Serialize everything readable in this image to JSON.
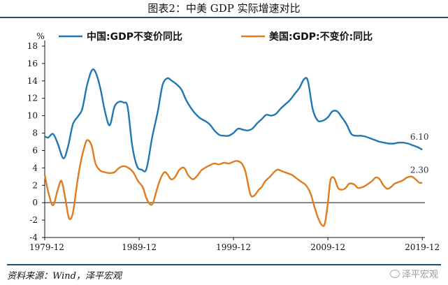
{
  "header": {
    "title": "图表2：中美 GDP 实际增速对比"
  },
  "source": {
    "text": "资料来源：Wind，泽平宏观"
  },
  "watermark": {
    "text": "泽平宏观"
  },
  "chart_data": {
    "type": "line",
    "title": "",
    "ylabel": "%",
    "xlabel": "",
    "ylim": [
      -4,
      18
    ],
    "xlim": [
      1979.92,
      2020.2
    ],
    "y_ticks": [
      -4,
      -2,
      0,
      2,
      4,
      6,
      8,
      10,
      12,
      14,
      16,
      18
    ],
    "x_ticks": [
      "1979-12",
      "1989-12",
      "1999-12",
      "2009-12",
      "2019-12"
    ],
    "x_tick_values": [
      1979.92,
      1989.92,
      1999.92,
      2009.92,
      2019.92
    ],
    "legend": "top",
    "grid": false,
    "series": [
      {
        "name": "中国:GDP不变价同比",
        "color": "#1f77b4",
        "end_label": "6.10",
        "points": [
          [
            1979.92,
            7.6
          ],
          [
            1980.3,
            7.5
          ],
          [
            1980.8,
            7.9
          ],
          [
            1981.3,
            6.8
          ],
          [
            1981.9,
            5.1
          ],
          [
            1982.4,
            6.5
          ],
          [
            1982.9,
            9.0
          ],
          [
            1983.5,
            10.0
          ],
          [
            1983.9,
            10.8
          ],
          [
            1984.4,
            13.5
          ],
          [
            1984.9,
            15.2
          ],
          [
            1985.3,
            15.0
          ],
          [
            1985.8,
            13.2
          ],
          [
            1986.3,
            10.5
          ],
          [
            1986.8,
            8.9
          ],
          [
            1987.3,
            11.0
          ],
          [
            1987.8,
            11.6
          ],
          [
            1988.3,
            11.5
          ],
          [
            1988.7,
            11.0
          ],
          [
            1989.2,
            6.5
          ],
          [
            1989.7,
            4.2
          ],
          [
            1990.2,
            3.8
          ],
          [
            1990.7,
            3.9
          ],
          [
            1991.3,
            7.5
          ],
          [
            1991.9,
            10.5
          ],
          [
            1992.4,
            13.5
          ],
          [
            1992.9,
            14.3
          ],
          [
            1993.4,
            14.0
          ],
          [
            1993.9,
            13.6
          ],
          [
            1994.4,
            13.0
          ],
          [
            1994.9,
            11.8
          ],
          [
            1995.4,
            10.9
          ],
          [
            1995.9,
            10.2
          ],
          [
            1996.4,
            9.7
          ],
          [
            1996.9,
            9.4
          ],
          [
            1997.4,
            9.0
          ],
          [
            1997.9,
            8.3
          ],
          [
            1998.4,
            7.8
          ],
          [
            1998.9,
            7.7
          ],
          [
            1999.4,
            7.7
          ],
          [
            1999.9,
            8.0
          ],
          [
            2000.4,
            8.5
          ],
          [
            2000.9,
            8.4
          ],
          [
            2001.4,
            8.3
          ],
          [
            2001.9,
            8.5
          ],
          [
            2002.4,
            9.1
          ],
          [
            2002.9,
            9.6
          ],
          [
            2003.4,
            10.1
          ],
          [
            2003.9,
            10.0
          ],
          [
            2004.4,
            10.2
          ],
          [
            2004.9,
            10.8
          ],
          [
            2005.4,
            11.3
          ],
          [
            2005.9,
            11.8
          ],
          [
            2006.4,
            12.5
          ],
          [
            2006.9,
            13.2
          ],
          [
            2007.4,
            14.2
          ],
          [
            2007.8,
            14.0
          ],
          [
            2008.3,
            10.8
          ],
          [
            2008.8,
            9.5
          ],
          [
            2009.3,
            9.4
          ],
          [
            2009.9,
            9.8
          ],
          [
            2010.4,
            10.5
          ],
          [
            2010.9,
            10.5
          ],
          [
            2011.4,
            9.8
          ],
          [
            2011.9,
            9.0
          ],
          [
            2012.4,
            7.9
          ],
          [
            2012.9,
            7.7
          ],
          [
            2013.4,
            7.7
          ],
          [
            2013.9,
            7.6
          ],
          [
            2014.4,
            7.4
          ],
          [
            2014.9,
            7.2
          ],
          [
            2015.4,
            7.0
          ],
          [
            2015.9,
            6.9
          ],
          [
            2016.4,
            6.8
          ],
          [
            2016.9,
            6.8
          ],
          [
            2017.4,
            6.9
          ],
          [
            2017.9,
            6.9
          ],
          [
            2018.4,
            6.8
          ],
          [
            2018.9,
            6.6
          ],
          [
            2019.4,
            6.4
          ],
          [
            2019.92,
            6.1
          ]
        ]
      },
      {
        "name": "美国:GDP:不变价:同比",
        "color": "#e07b1f",
        "end_label": "2.30",
        "points": [
          [
            1979.92,
            3.2
          ],
          [
            1980.3,
            1.2
          ],
          [
            1980.8,
            -0.3
          ],
          [
            1981.3,
            1.5
          ],
          [
            1981.7,
            2.5
          ],
          [
            1982.1,
            0.5
          ],
          [
            1982.5,
            -1.8
          ],
          [
            1982.9,
            -1.2
          ],
          [
            1983.3,
            1.8
          ],
          [
            1983.7,
            4.5
          ],
          [
            1984.2,
            6.7
          ],
          [
            1984.5,
            7.2
          ],
          [
            1984.9,
            6.5
          ],
          [
            1985.3,
            4.5
          ],
          [
            1985.8,
            3.7
          ],
          [
            1986.3,
            3.5
          ],
          [
            1986.8,
            3.4
          ],
          [
            1987.3,
            3.5
          ],
          [
            1987.8,
            4.0
          ],
          [
            1988.3,
            4.2
          ],
          [
            1988.8,
            4.0
          ],
          [
            1989.3,
            3.5
          ],
          [
            1989.8,
            2.5
          ],
          [
            1990.3,
            1.8
          ],
          [
            1990.7,
            0.5
          ],
          [
            1991.1,
            -0.2
          ],
          [
            1991.4,
            0.0
          ],
          [
            1991.8,
            1.5
          ],
          [
            1992.2,
            2.8
          ],
          [
            1992.6,
            3.5
          ],
          [
            1992.9,
            3.3
          ],
          [
            1993.3,
            2.7
          ],
          [
            1993.7,
            2.9
          ],
          [
            1994.2,
            3.8
          ],
          [
            1994.7,
            4.0
          ],
          [
            1995.1,
            3.2
          ],
          [
            1995.6,
            2.7
          ],
          [
            1996.0,
            3.0
          ],
          [
            1996.5,
            3.7
          ],
          [
            1996.9,
            4.0
          ],
          [
            1997.4,
            4.3
          ],
          [
            1997.9,
            4.5
          ],
          [
            1998.4,
            4.4
          ],
          [
            1998.9,
            4.6
          ],
          [
            1999.4,
            4.5
          ],
          [
            1999.9,
            4.7
          ],
          [
            2000.3,
            4.8
          ],
          [
            2000.8,
            4.5
          ],
          [
            2001.2,
            3.5
          ],
          [
            2001.7,
            1.0
          ],
          [
            2002.1,
            0.8
          ],
          [
            2002.6,
            1.5
          ],
          [
            2002.9,
            1.8
          ],
          [
            2003.3,
            2.5
          ],
          [
            2003.8,
            3.0
          ],
          [
            2004.2,
            3.5
          ],
          [
            2004.6,
            3.8
          ],
          [
            2005.1,
            3.6
          ],
          [
            2005.6,
            3.4
          ],
          [
            2006.1,
            3.2
          ],
          [
            2006.6,
            2.8
          ],
          [
            2007.1,
            2.4
          ],
          [
            2007.6,
            2.0
          ],
          [
            2008.1,
            1.0
          ],
          [
            2008.5,
            -0.5
          ],
          [
            2008.9,
            -1.8
          ],
          [
            2009.3,
            -2.6
          ],
          [
            2009.6,
            -2.4
          ],
          [
            2009.9,
            -0.2
          ],
          [
            2010.2,
            2.6
          ],
          [
            2010.6,
            2.8
          ],
          [
            2011.0,
            1.7
          ],
          [
            2011.4,
            1.5
          ],
          [
            2011.8,
            1.7
          ],
          [
            2012.2,
            2.2
          ],
          [
            2012.7,
            2.1
          ],
          [
            2013.1,
            1.7
          ],
          [
            2013.6,
            1.8
          ],
          [
            2014.1,
            2.1
          ],
          [
            2014.6,
            2.5
          ],
          [
            2015.0,
            2.9
          ],
          [
            2015.4,
            2.7
          ],
          [
            2015.8,
            2.0
          ],
          [
            2016.2,
            1.6
          ],
          [
            2016.6,
            1.8
          ],
          [
            2017.0,
            2.2
          ],
          [
            2017.5,
            2.4
          ],
          [
            2017.9,
            2.6
          ],
          [
            2018.3,
            2.9
          ],
          [
            2018.8,
            3.0
          ],
          [
            2019.2,
            2.7
          ],
          [
            2019.6,
            2.3
          ],
          [
            2019.92,
            2.3
          ]
        ]
      }
    ]
  }
}
